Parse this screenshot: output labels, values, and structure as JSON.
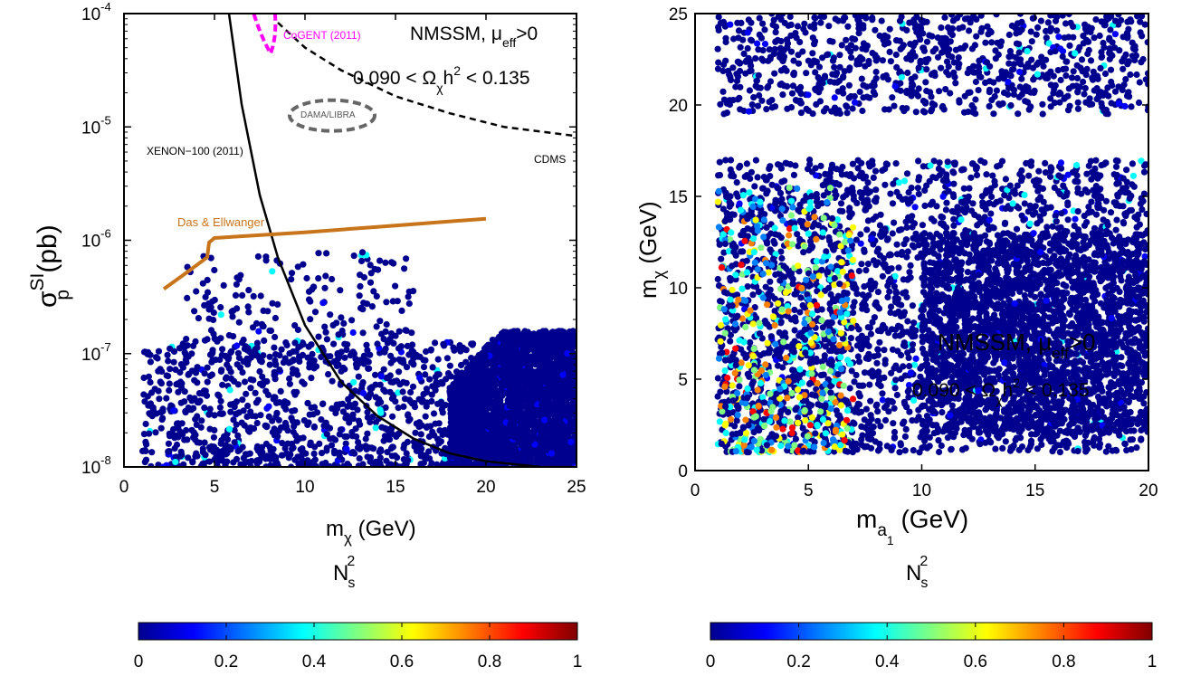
{
  "colormap": [
    "#00008f",
    "#0000ff",
    "#0080ff",
    "#00ffff",
    "#80ff80",
    "#ffff00",
    "#ff8000",
    "#ff0000",
    "#800000"
  ],
  "chart_data": [
    {
      "type": "scatter",
      "xlim": [
        0,
        25
      ],
      "ylim_log10": [
        -8,
        -4
      ],
      "yscale": "log",
      "x_ticks": [
        "0",
        "5",
        "10",
        "15",
        "20",
        "25"
      ],
      "y_ticks": [
        "10",
        "10",
        "10",
        "10",
        "10"
      ],
      "y_tick_exponents": [
        "-8",
        "-7",
        "-6",
        "-5",
        "-4"
      ],
      "xlabel": {
        "main": "m",
        "sub": "χ",
        "rest": " (GeV)"
      },
      "ylabel": {
        "main": "σ",
        "sup": "SI",
        "sub": "p",
        "rest": " (pb)"
      },
      "annotations": {
        "model": {
          "text": "NMSSM, μ",
          "sub": "eff",
          "rest": ">0"
        },
        "relic": {
          "text": "0.090 < Ω",
          "sub": "χ",
          "mid": "h",
          "sup": "2",
          "rest": " < 0.135"
        },
        "xenon": "XENON−100 (2011)",
        "cdms": "CDMS",
        "dama": "DAMA/LIBRA",
        "cogent": "CoGENT (2011)",
        "das": "Das & Ellwanger"
      },
      "curves": {
        "xenon100": [
          [
            5.8,
            -4.0
          ],
          [
            6.5,
            -4.8
          ],
          [
            7.5,
            -5.6
          ],
          [
            8.5,
            -6.15
          ],
          [
            10,
            -6.75
          ],
          [
            12,
            -7.25
          ],
          [
            14,
            -7.55
          ],
          [
            16,
            -7.75
          ],
          [
            18,
            -7.88
          ],
          [
            20,
            -7.95
          ],
          [
            23,
            -8.0
          ],
          [
            25,
            -8.03
          ]
        ],
        "cdms": [
          [
            8.5,
            -4.08
          ],
          [
            10,
            -4.3
          ],
          [
            12,
            -4.5
          ],
          [
            15,
            -4.73
          ],
          [
            18,
            -4.88
          ],
          [
            21,
            -5.0
          ],
          [
            25,
            -5.08
          ]
        ],
        "das_ellwanger": [
          [
            2.2,
            -6.43
          ],
          [
            3.5,
            -6.28
          ],
          [
            4.6,
            -6.15
          ],
          [
            4.7,
            -6.02
          ],
          [
            5.0,
            -5.98
          ],
          [
            10,
            -5.93
          ],
          [
            15,
            -5.87
          ],
          [
            20,
            -5.81
          ]
        ],
        "dama_center": [
          11.5,
          -4.9
        ],
        "cogent_center": [
          8.0,
          -4.15
        ]
      },
      "scatter_regions": [
        {
          "x": [
            1.0,
            25.0
          ],
          "y_log10": [
            -8.0,
            -6.9
          ],
          "count": 1300,
          "color_weight": "low"
        },
        {
          "x": [
            3.0,
            16.0
          ],
          "y_log10": [
            -7.1,
            -6.1
          ],
          "count": 230,
          "color_weight": "low"
        },
        {
          "x": [
            18.0,
            25.0
          ],
          "y_log10": [
            -8.0,
            -6.8
          ],
          "count": 2800,
          "color_weight": "dense"
        }
      ]
    },
    {
      "type": "scatter",
      "xlim": [
        0,
        20
      ],
      "ylim": [
        0,
        25
      ],
      "x_ticks": [
        "0",
        "5",
        "10",
        "15",
        "20"
      ],
      "y_ticks": [
        "0",
        "5",
        "10",
        "15",
        "20",
        "25"
      ],
      "xlabel": {
        "main": "m",
        "sub": "a",
        "subsub": "1",
        "rest": " (GeV)"
      },
      "ylabel": {
        "main": "m",
        "sub": "χ",
        "rest": " (GeV)"
      },
      "annotations": {
        "model": {
          "text": "NMSSM, μ",
          "sub": "eff",
          "rest": ">0"
        },
        "relic": {
          "text": "0.090 < Ω",
          "sub": "χ",
          "mid": "h",
          "sup": "2",
          "rest": " < 0.135"
        }
      },
      "scatter_regions": [
        {
          "x": [
            1.0,
            20.0
          ],
          "y": [
            19.5,
            25.0
          ],
          "count": 900,
          "color_weight": "low"
        },
        {
          "x": [
            1.0,
            20.0
          ],
          "y": [
            1.0,
            17.0
          ],
          "count": 2600,
          "color_weight": "low"
        },
        {
          "x": [
            10.0,
            20.0
          ],
          "y": [
            2.0,
            13.0
          ],
          "count": 2200,
          "color_weight": "dense"
        },
        {
          "x": [
            1.0,
            7.0
          ],
          "y": [
            1.0,
            15.5
          ],
          "count": 650,
          "color_weight": "high"
        }
      ]
    }
  ],
  "colorbars": [
    {
      "label": {
        "main": "N",
        "sub": "s",
        "sup": "2"
      },
      "ticks": [
        "0",
        "0.2",
        "0.4",
        "0.6",
        "0.8",
        "1"
      ]
    },
    {
      "label": {
        "main": "N",
        "sub": "s",
        "sup": "2"
      },
      "ticks": [
        "0",
        "0.2",
        "0.4",
        "0.6",
        "0.8",
        "1"
      ]
    }
  ]
}
